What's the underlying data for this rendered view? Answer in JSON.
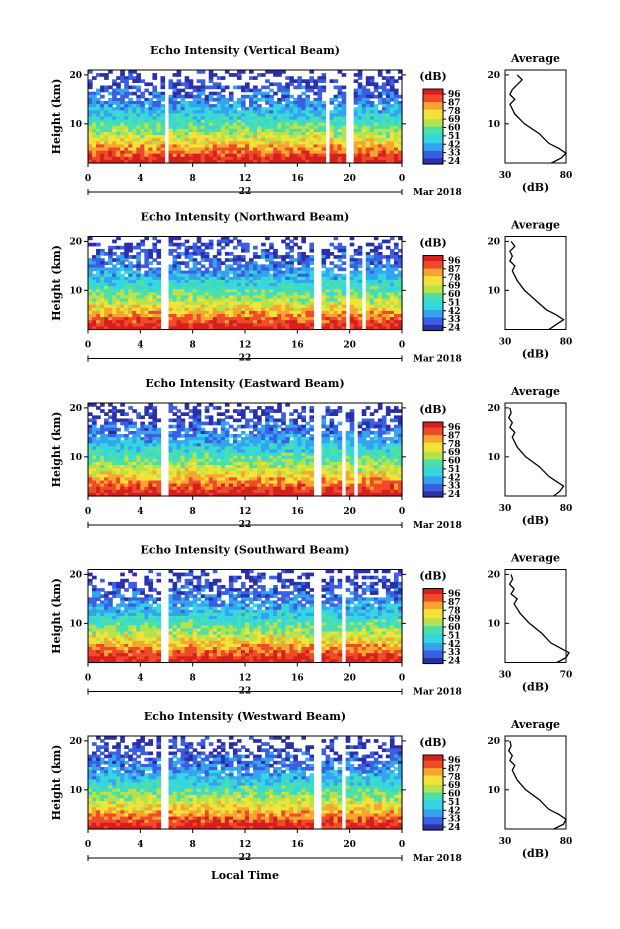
{
  "chart_data": [
    {
      "type": "heatmap",
      "title": "Echo Intensity (Vertical Beam)",
      "ylabel": "Height (km)",
      "yticks": [
        "20",
        "10"
      ],
      "xticks": [
        "0",
        "4",
        "8",
        "12",
        "16",
        "20",
        "0"
      ],
      "date_day": "22",
      "date_label": "Mar 2018",
      "colorbar_unit": "(dB)",
      "colorbar_ticks": [
        "96",
        "87",
        "78",
        "69",
        "60",
        "51",
        "42",
        "33",
        "24"
      ],
      "avg_title": "Average",
      "avg_xticks": [
        "30",
        "80"
      ],
      "avg_xlabel": "(dB)",
      "avg_yticks": [
        "20",
        "10"
      ],
      "gaps_hours": [
        [
          5.7,
          6.0
        ],
        [
          18.2,
          18.4
        ],
        [
          19.8,
          20.2
        ],
        [
          20.8,
          21.0
        ]
      ],
      "avg_profile": {
        "heights_km": [
          2,
          3,
          4,
          5,
          6,
          8,
          10,
          12,
          14,
          15,
          16,
          17,
          18,
          19,
          20
        ],
        "db": [
          68,
          76,
          80,
          74,
          66,
          58,
          46,
          38,
          34,
          38,
          34,
          36,
          40,
          44,
          40
        ]
      }
    },
    {
      "type": "heatmap",
      "title": "Echo Intensity (Northward Beam)",
      "ylabel": "Height (km)",
      "yticks": [
        "20",
        "10"
      ],
      "xticks": [
        "0",
        "4",
        "8",
        "12",
        "16",
        "20",
        "0"
      ],
      "date_day": "22",
      "date_label": "Mar 2018",
      "colorbar_unit": "(dB)",
      "colorbar_ticks": [
        "96",
        "87",
        "78",
        "69",
        "60",
        "51",
        "42",
        "33",
        "24"
      ],
      "avg_title": "Average",
      "avg_xticks": [
        "30",
        "80"
      ],
      "avg_xlabel": "(dB)",
      "avg_yticks": [
        "20",
        "10"
      ],
      "gaps_hours": [
        [
          5.5,
          6.0
        ],
        [
          17.3,
          17.7
        ],
        [
          19.6,
          20.0
        ],
        [
          20.8,
          21.1
        ]
      ],
      "avg_profile": {
        "heights_km": [
          2,
          3,
          4,
          5,
          6,
          8,
          10,
          12,
          14,
          15,
          16,
          17,
          18,
          19,
          20
        ],
        "db": [
          66,
          72,
          78,
          72,
          64,
          55,
          46,
          40,
          36,
          38,
          34,
          36,
          34,
          38,
          35
        ]
      }
    },
    {
      "type": "heatmap",
      "title": "Echo Intensity (Eastward Beam)",
      "ylabel": "Height (km)",
      "yticks": [
        "20",
        "10"
      ],
      "xticks": [
        "0",
        "4",
        "8",
        "12",
        "16",
        "20",
        "0"
      ],
      "date_day": "22",
      "date_label": "Mar 2018",
      "colorbar_unit": "(dB)",
      "colorbar_ticks": [
        "96",
        "87",
        "78",
        "69",
        "60",
        "51",
        "42",
        "33",
        "24"
      ],
      "avg_title": "Average",
      "avg_xticks": [
        "30",
        "80"
      ],
      "avg_xlabel": "(dB)",
      "avg_yticks": [
        "20",
        "10"
      ],
      "gaps_hours": [
        [
          5.5,
          6.0
        ],
        [
          17.3,
          17.7
        ],
        [
          19.3,
          19.6
        ],
        [
          20.3,
          20.5
        ]
      ],
      "avg_profile": {
        "heights_km": [
          2,
          3,
          4,
          5,
          6,
          8,
          10,
          12,
          14,
          15,
          16,
          17,
          18,
          19,
          20
        ],
        "db": [
          70,
          75,
          78,
          72,
          66,
          58,
          47,
          40,
          36,
          38,
          34,
          36,
          33,
          35,
          34
        ]
      }
    },
    {
      "type": "heatmap",
      "title": "Echo Intensity (Southward Beam)",
      "ylabel": "Height (km)",
      "yticks": [
        "20",
        "10"
      ],
      "xticks": [
        "0",
        "4",
        "8",
        "12",
        "16",
        "20",
        "0"
      ],
      "date_day": "22",
      "date_label": "Mar 2018",
      "colorbar_unit": "(dB)",
      "colorbar_ticks": [
        "96",
        "87",
        "78",
        "69",
        "60",
        "51",
        "42",
        "33",
        "24"
      ],
      "avg_title": "Average",
      "avg_xticks": [
        "30",
        "70"
      ],
      "avg_xlabel": "(dB)",
      "avg_yticks": [
        "20",
        "10"
      ],
      "gaps_hours": [
        [
          5.5,
          6.0
        ],
        [
          17.3,
          17.7
        ],
        [
          19.4,
          19.8
        ],
        [
          20.8,
          21.0
        ]
      ],
      "avg_profile": {
        "heights_km": [
          2,
          3,
          4,
          5,
          6,
          8,
          10,
          12,
          14,
          15,
          16,
          17,
          18,
          19,
          20
        ],
        "db": [
          64,
          70,
          72,
          66,
          60,
          54,
          46,
          40,
          36,
          38,
          34,
          36,
          33,
          35,
          34
        ]
      }
    },
    {
      "type": "heatmap",
      "title": "Echo Intensity (Westward Beam)",
      "ylabel": "Height (km)",
      "yticks": [
        "20",
        "10"
      ],
      "xticks": [
        "0",
        "4",
        "8",
        "12",
        "16",
        "20",
        "0"
      ],
      "date_day": "22",
      "date_label": "Mar 2018",
      "colorbar_unit": "(dB)",
      "colorbar_ticks": [
        "96",
        "87",
        "78",
        "69",
        "60",
        "51",
        "42",
        "33",
        "24"
      ],
      "avg_title": "Average",
      "avg_xticks": [
        "30",
        "80"
      ],
      "avg_xlabel": "(dB)",
      "avg_yticks": [
        "20",
        "10"
      ],
      "gaps_hours": [
        [
          5.5,
          6.0
        ],
        [
          17.3,
          17.7
        ],
        [
          19.4,
          19.8
        ],
        [
          20.8,
          21.0
        ]
      ],
      "avg_profile": {
        "heights_km": [
          2,
          3,
          4,
          5,
          6,
          8,
          10,
          12,
          14,
          15,
          16,
          17,
          18,
          19,
          20
        ],
        "db": [
          70,
          78,
          80,
          74,
          66,
          58,
          47,
          40,
          36,
          38,
          34,
          36,
          33,
          35,
          34
        ]
      }
    }
  ],
  "footer": {
    "xlabel": "Local Time"
  },
  "colors": [
    "#2b2fa8",
    "#3a5fe0",
    "#34a3f0",
    "#36d6e0",
    "#4ce0a8",
    "#b6e34c",
    "#f3e23a",
    "#f7a531",
    "#ef4a2a",
    "#d81f1f"
  ]
}
